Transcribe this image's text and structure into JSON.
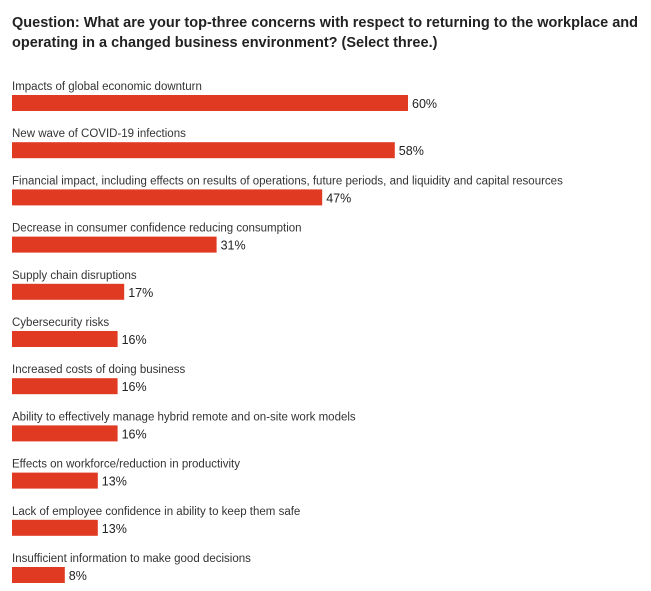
{
  "chart_data": {
    "type": "bar",
    "orientation": "horizontal",
    "title": "Question: What are your top-three concerns with respect to returning to the workplace and operating in a changed business environment? (Select three.)",
    "categories": [
      "Impacts of global economic downturn",
      "New wave of COVID-19 infections",
      "Financial impact, including effects on results of operations, future periods, and liquidity and capital resources",
      "Decrease in consumer confidence reducing consumption",
      "Supply chain disruptions",
      "Cybersecurity risks",
      "Increased costs of doing business",
      "Ability to effectively manage hybrid remote and on-site work models",
      "Effects on workforce/reduction in productivity",
      "Lack of employee confidence in ability to keep them safe",
      "Insufficient information to make good decisions"
    ],
    "values": [
      60,
      58,
      47,
      31,
      17,
      16,
      16,
      16,
      13,
      13,
      8
    ],
    "value_labels": [
      "60%",
      "58%",
      "47%",
      "31%",
      "17%",
      "16%",
      "16%",
      "16%",
      "13%",
      "13%",
      "8%"
    ],
    "unit": "%",
    "bar_color": "#e03a23",
    "grid": false,
    "legend": "none"
  }
}
